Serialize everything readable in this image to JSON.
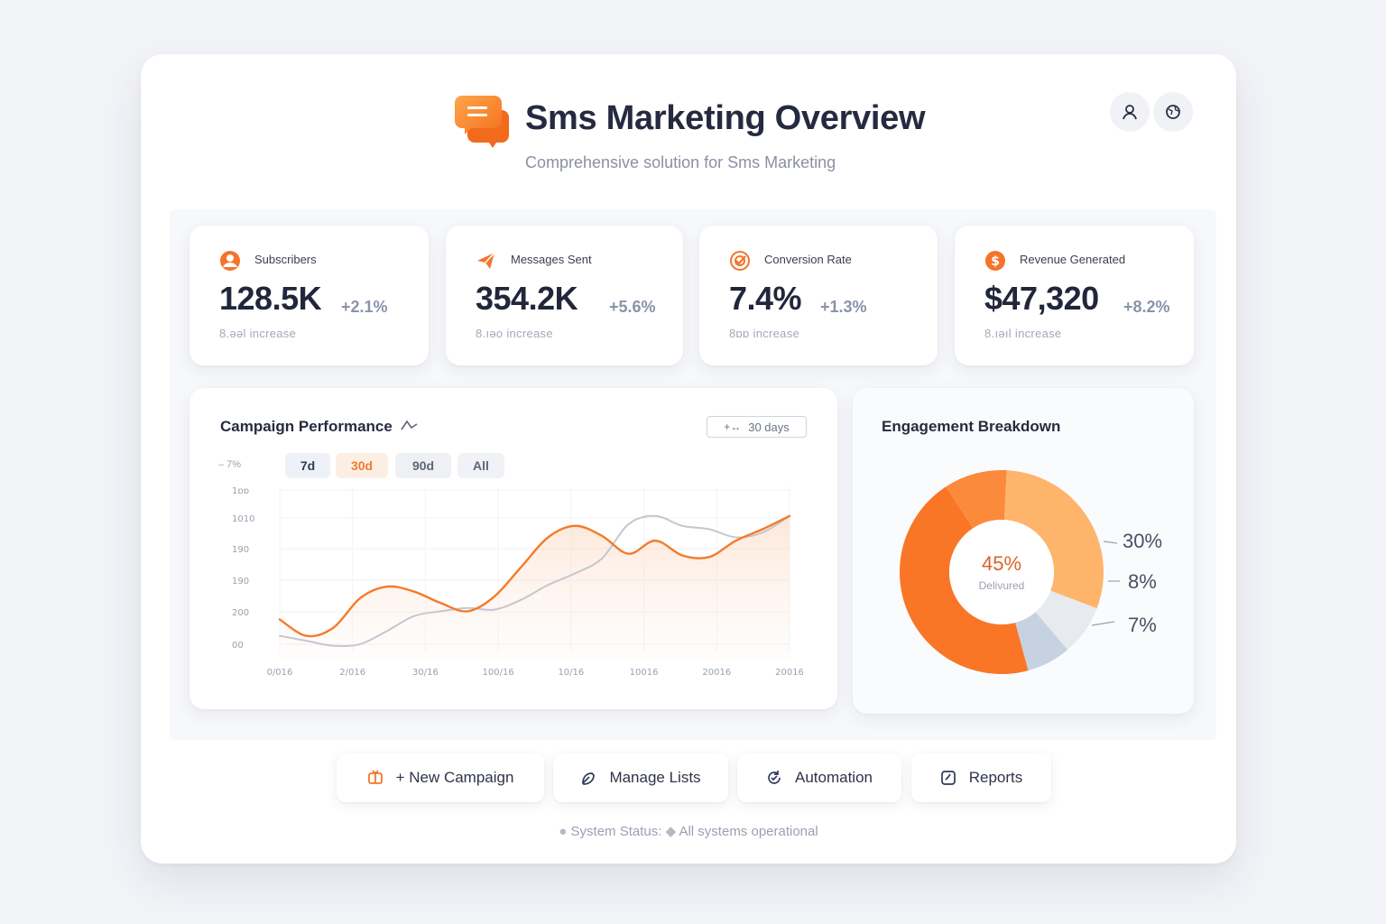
{
  "header": {
    "title": "Sms Marketing Overview",
    "subtitle": "Comprehensive solution for Sms Marketing",
    "logo_icon": "chat-bubbles-icon",
    "profile_icon": "user-icon",
    "settings_icon": "globe-icon"
  },
  "stats": [
    {
      "label": "Subscribers",
      "value": "128.5K",
      "change": "+2.1%",
      "sub": "8.ǝəl increase",
      "icon": "user-circle-icon"
    },
    {
      "label": "Messages Sent",
      "value": "354.2K",
      "change": "+5.6%",
      "sub": "8.ıəo increase",
      "icon": "send-icon"
    },
    {
      "label": "Conversion Rate",
      "value": "7.4%",
      "change": "+1.3%",
      "sub": "8ɒɒ increase",
      "icon": "target-icon"
    },
    {
      "label": "Revenue Generated",
      "value": "$47,320",
      "change": "+8.2%",
      "sub": "8.ıəıl increase",
      "icon": "dollar-icon"
    }
  ],
  "campaign": {
    "title": "Campaign Performance",
    "range_label": "30 days",
    "y_axis_caption": "– 7%",
    "filters": [
      "7d",
      "30d",
      "90d",
      "All"
    ],
    "active_filter": "30d"
  },
  "chart_data": {
    "type": "line",
    "title": "Campaign Performance",
    "y_tick_labels": [
      "1ɒɒ",
      "1010",
      "190",
      "190",
      "200",
      "00"
    ],
    "x_tick_labels": [
      "0/016",
      "2/016",
      "30/16",
      "100/16",
      "10/16",
      "10016",
      "20016",
      "20016"
    ],
    "series": [
      {
        "color": "#f57a2a",
        "values": [
          0.25,
          0.15,
          0.2,
          0.38,
          0.45,
          0.42,
          0.35,
          0.3,
          0.39,
          0.57,
          0.75,
          0.82,
          0.76,
          0.65,
          0.73,
          0.64,
          0.63,
          0.73,
          0.8,
          0.88
        ]
      },
      {
        "color": "#c4c7cf",
        "values": [
          0.15,
          0.12,
          0.09,
          0.1,
          0.18,
          0.27,
          0.3,
          0.32,
          0.31,
          0.37,
          0.46,
          0.53,
          0.62,
          0.83,
          0.88,
          0.82,
          0.8,
          0.75,
          0.78,
          0.88
        ]
      }
    ]
  },
  "engagement": {
    "title": "Engagement Breakdown",
    "center_value": "45%",
    "center_label": "Delivured",
    "slice_labels": [
      "30%",
      "8%",
      "7%"
    ],
    "chart_data": {
      "type": "pie",
      "values": [
        45,
        30,
        8,
        7,
        10
      ],
      "colors": [
        "#f97626",
        "#ffb46c",
        "#e7eaef",
        "#c7d2e1",
        "#fb8a3b"
      ]
    }
  },
  "actions": [
    {
      "label": "+ New Campaign",
      "icon": "new-campaign-icon"
    },
    {
      "label": "Manage Lists",
      "icon": "lists-icon"
    },
    {
      "label": "Automation",
      "icon": "automation-icon"
    },
    {
      "label": "Reports",
      "icon": "reports-icon"
    }
  ],
  "status": {
    "label": "System Status:",
    "value": "All systems operational"
  }
}
